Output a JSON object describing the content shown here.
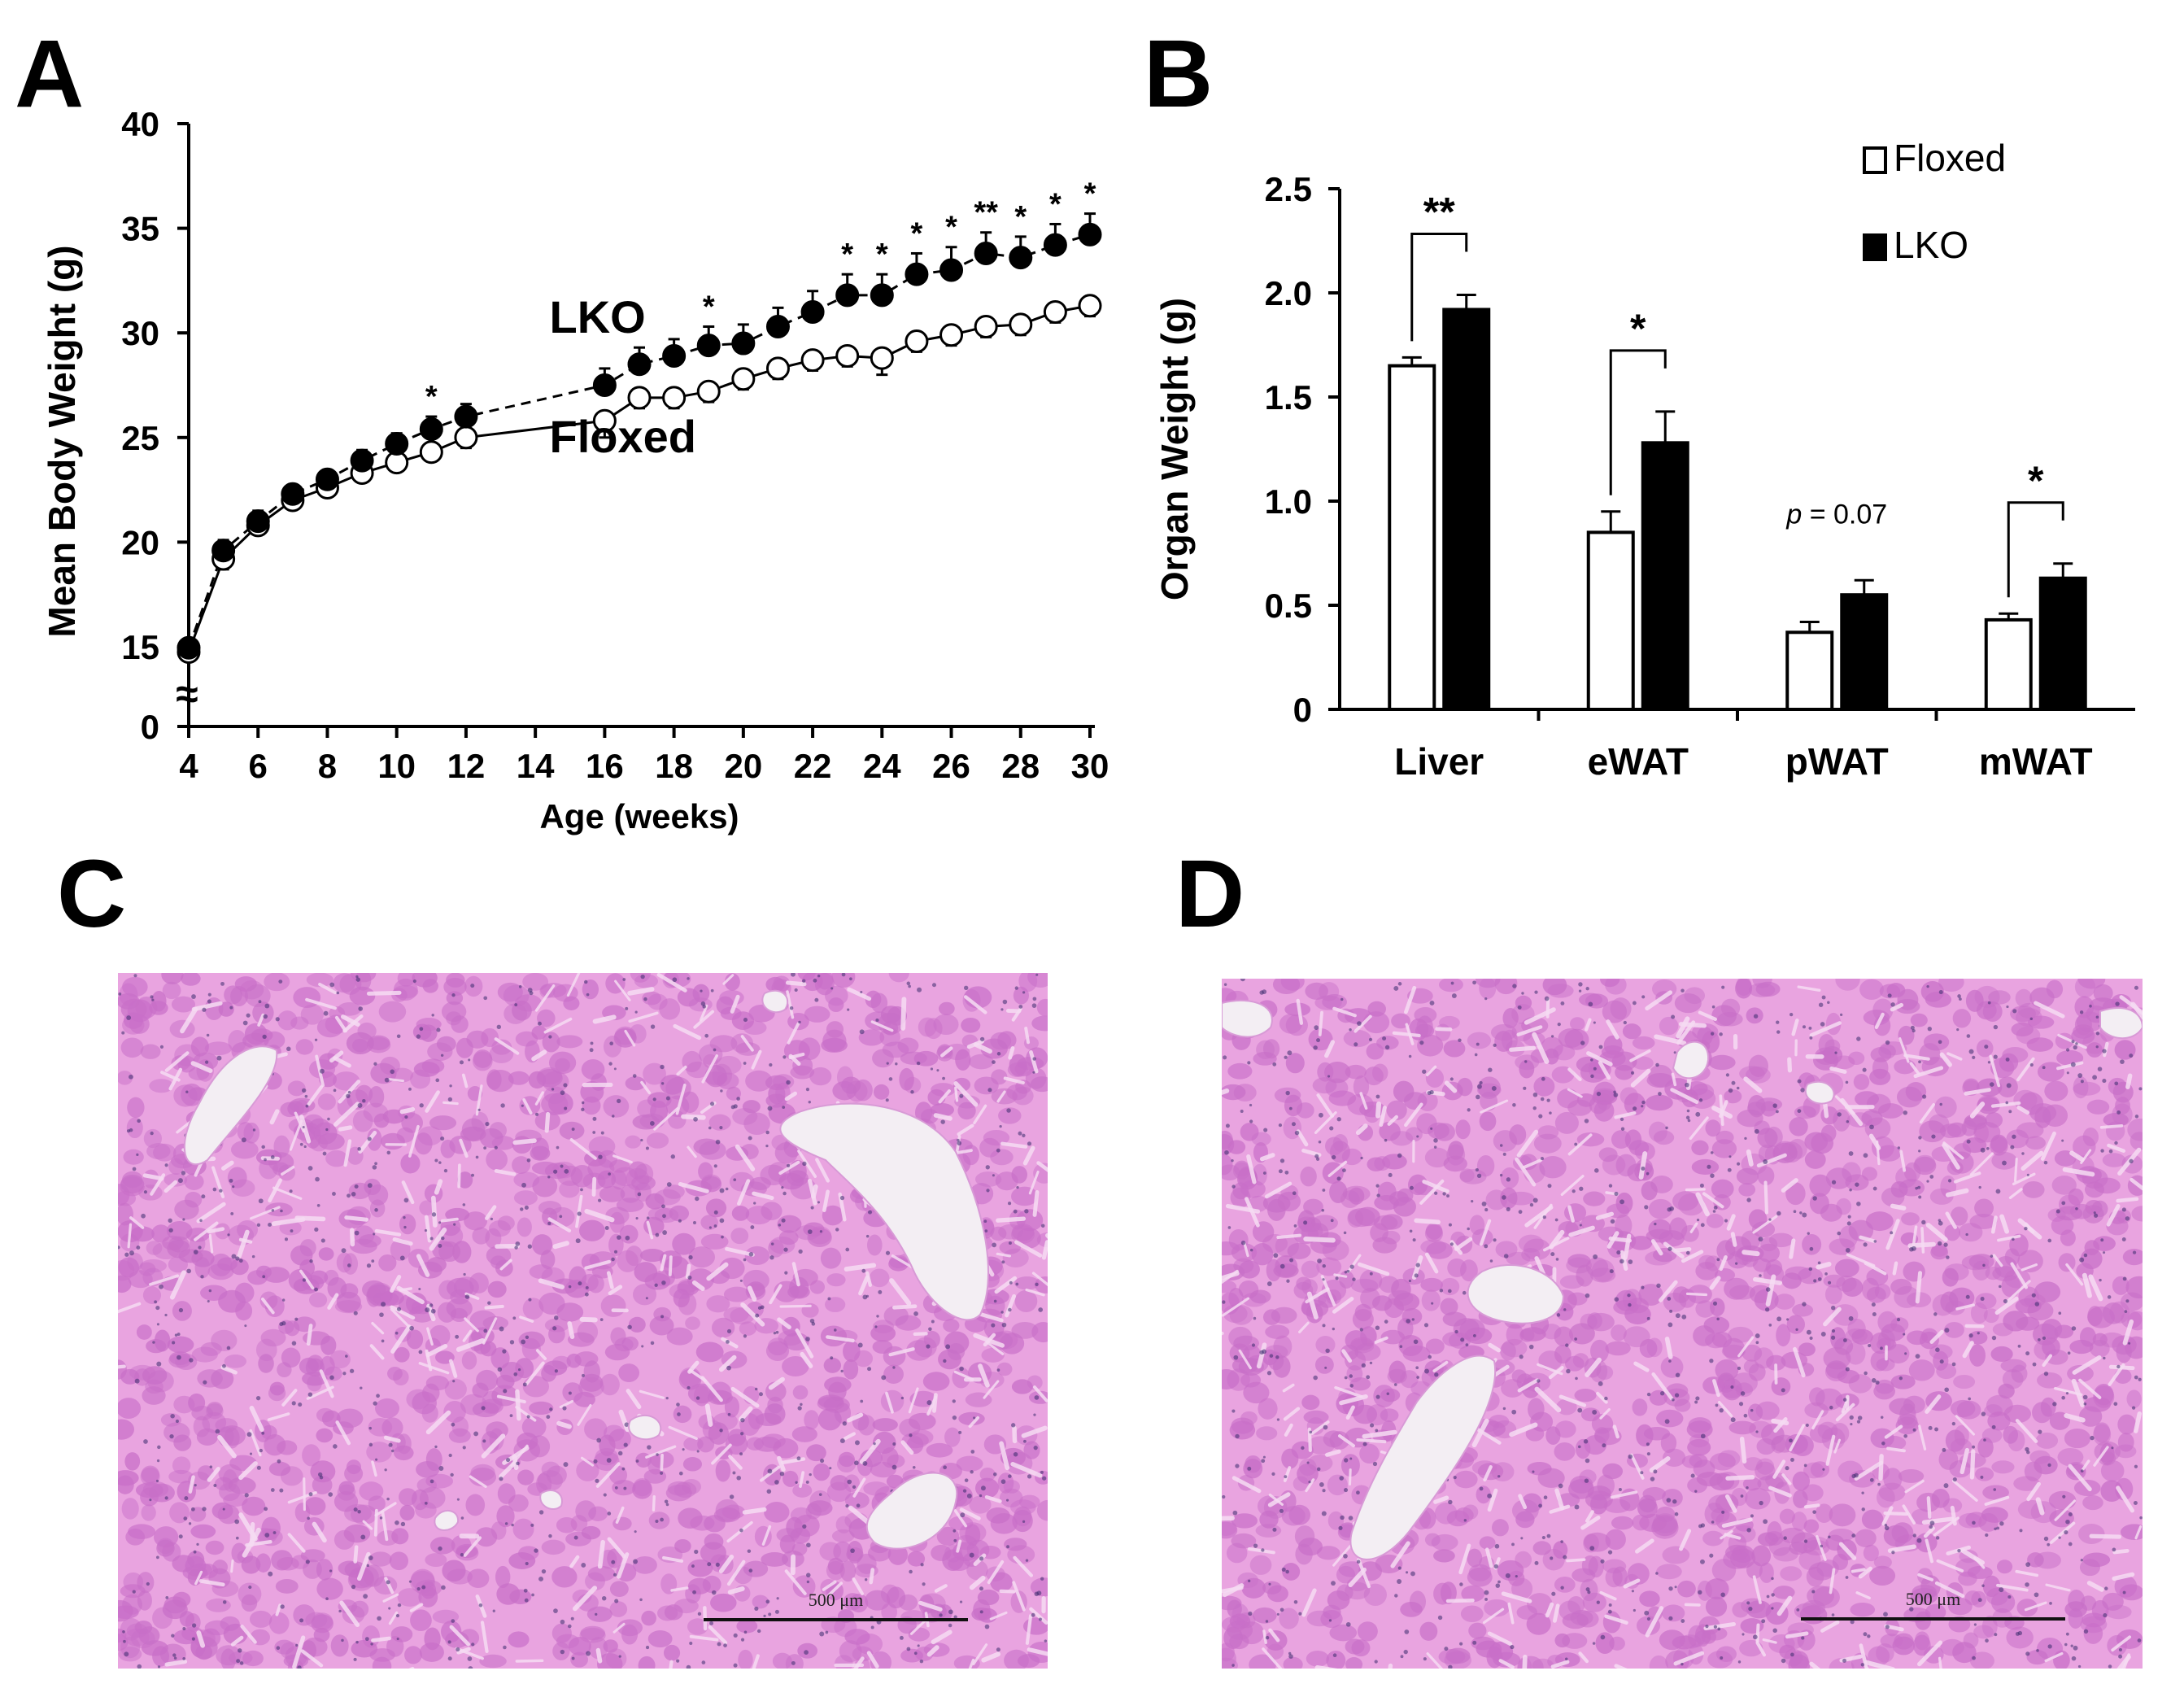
{
  "panels": {
    "A": "A",
    "B": "B",
    "C": "C",
    "D": "D"
  },
  "colors": {
    "tissue": "#e9a4e0",
    "tissue_dark": "#c86fc8",
    "vessel": "#f3eef3",
    "nuclei": "#3b2c6e"
  },
  "chart_data": [
    {
      "type": "line",
      "panel": "A",
      "xlabel": "Age (weeks)",
      "ylabel": "Mean Body Weight (g)",
      "xlim": [
        4,
        30
      ],
      "ylim": [
        0,
        40
      ],
      "xticks": [
        4,
        6,
        8,
        10,
        12,
        14,
        16,
        18,
        20,
        22,
        24,
        26,
        28,
        30
      ],
      "yticks": [
        0,
        15,
        20,
        25,
        30,
        35,
        40
      ],
      "axis_break": "≈",
      "grid": false,
      "series": [
        {
          "name": "LKO",
          "marker": "filled-circle",
          "line": "dashed",
          "x": [
            4,
            5,
            6,
            7,
            8,
            9,
            10,
            11,
            12,
            16,
            17,
            18,
            19,
            20,
            21,
            22,
            23,
            24,
            25,
            26,
            27,
            28,
            29,
            30
          ],
          "y": [
            14.8,
            19.6,
            21.0,
            22.3,
            23.0,
            23.9,
            24.7,
            25.4,
            26.0,
            27.5,
            28.5,
            28.9,
            29.4,
            29.5,
            30.3,
            31.0,
            31.8,
            31.8,
            32.8,
            33.0,
            33.8,
            33.6,
            34.2,
            34.7
          ],
          "error": [
            0.3,
            0.5,
            0.5,
            0.4,
            0.4,
            0.5,
            0.5,
            0.6,
            0.6,
            0.8,
            0.8,
            0.8,
            0.9,
            0.9,
            0.9,
            1.0,
            1.0,
            1.0,
            1.0,
            1.1,
            1.0,
            1.0,
            1.0,
            1.0
          ]
        },
        {
          "name": "Floxed",
          "marker": "open-circle",
          "line": "solid",
          "x": [
            4,
            5,
            6,
            7,
            8,
            9,
            10,
            11,
            12,
            16,
            17,
            18,
            19,
            20,
            21,
            22,
            23,
            24,
            25,
            26,
            27,
            28,
            29,
            30
          ],
          "y": [
            14.0,
            19.2,
            20.8,
            22.0,
            22.6,
            23.3,
            23.8,
            24.3,
            25.0,
            25.8,
            26.9,
            26.9,
            27.2,
            27.8,
            28.3,
            28.7,
            28.9,
            28.8,
            29.6,
            29.9,
            30.3,
            30.4,
            31.0,
            31.3
          ],
          "error": [
            0.8,
            0.5,
            0.4,
            0.4,
            0.4,
            0.4,
            0.4,
            0.4,
            0.5,
            0.8,
            0.5,
            0.5,
            0.5,
            0.5,
            0.5,
            0.5,
            0.5,
            0.8,
            0.5,
            0.5,
            0.5,
            0.5,
            0.5,
            0.5
          ]
        }
      ],
      "significance": [
        {
          "x": 11,
          "label": "*"
        },
        {
          "x": 19,
          "label": "*"
        },
        {
          "x": 23,
          "label": "*"
        },
        {
          "x": 24,
          "label": "*"
        },
        {
          "x": 25,
          "label": "*"
        },
        {
          "x": 26,
          "label": "*"
        },
        {
          "x": 27,
          "label": "**"
        },
        {
          "x": 28,
          "label": "*"
        },
        {
          "x": 29,
          "label": "*"
        },
        {
          "x": 30,
          "label": "*"
        }
      ],
      "series_labels": [
        {
          "text": "LKO",
          "x": 13.0,
          "y": 30.0
        },
        {
          "text": "Floxed",
          "x": 13.0,
          "y": 24.3
        }
      ]
    },
    {
      "type": "bar",
      "panel": "B",
      "ylabel": "Organ Weight (g)",
      "ylim": [
        0,
        2.5
      ],
      "yticks": [
        0,
        0.5,
        1.0,
        1.5,
        2.0,
        2.5
      ],
      "yticklabels": [
        "0",
        "0.5",
        "1.0",
        "1.5",
        "2.0",
        "2.5"
      ],
      "categories": [
        "Liver",
        "eWAT",
        "pWAT",
        "mWAT"
      ],
      "legend_position": "top-right",
      "series": [
        {
          "name": "Floxed",
          "fill": "#ffffff",
          "values": [
            1.65,
            0.85,
            0.37,
            0.43
          ],
          "error": [
            0.04,
            0.1,
            0.05,
            0.03
          ]
        },
        {
          "name": "LKO",
          "fill": "#000000",
          "values": [
            1.92,
            1.28,
            0.55,
            0.63
          ],
          "error": [
            0.07,
            0.15,
            0.07,
            0.07
          ]
        }
      ],
      "annotations": [
        {
          "category": "Liver",
          "label": "**",
          "bracket": true
        },
        {
          "category": "eWAT",
          "label": "*",
          "bracket": true
        },
        {
          "category": "pWAT",
          "label_italic": "p",
          "label_rest": " = 0.07",
          "bracket": false
        },
        {
          "category": "mWAT",
          "label": "*",
          "bracket": true
        }
      ]
    }
  ],
  "micrographs": [
    {
      "panel": "C",
      "scale_label": "500 μm"
    },
    {
      "panel": "D",
      "scale_label": "500 μm"
    }
  ]
}
